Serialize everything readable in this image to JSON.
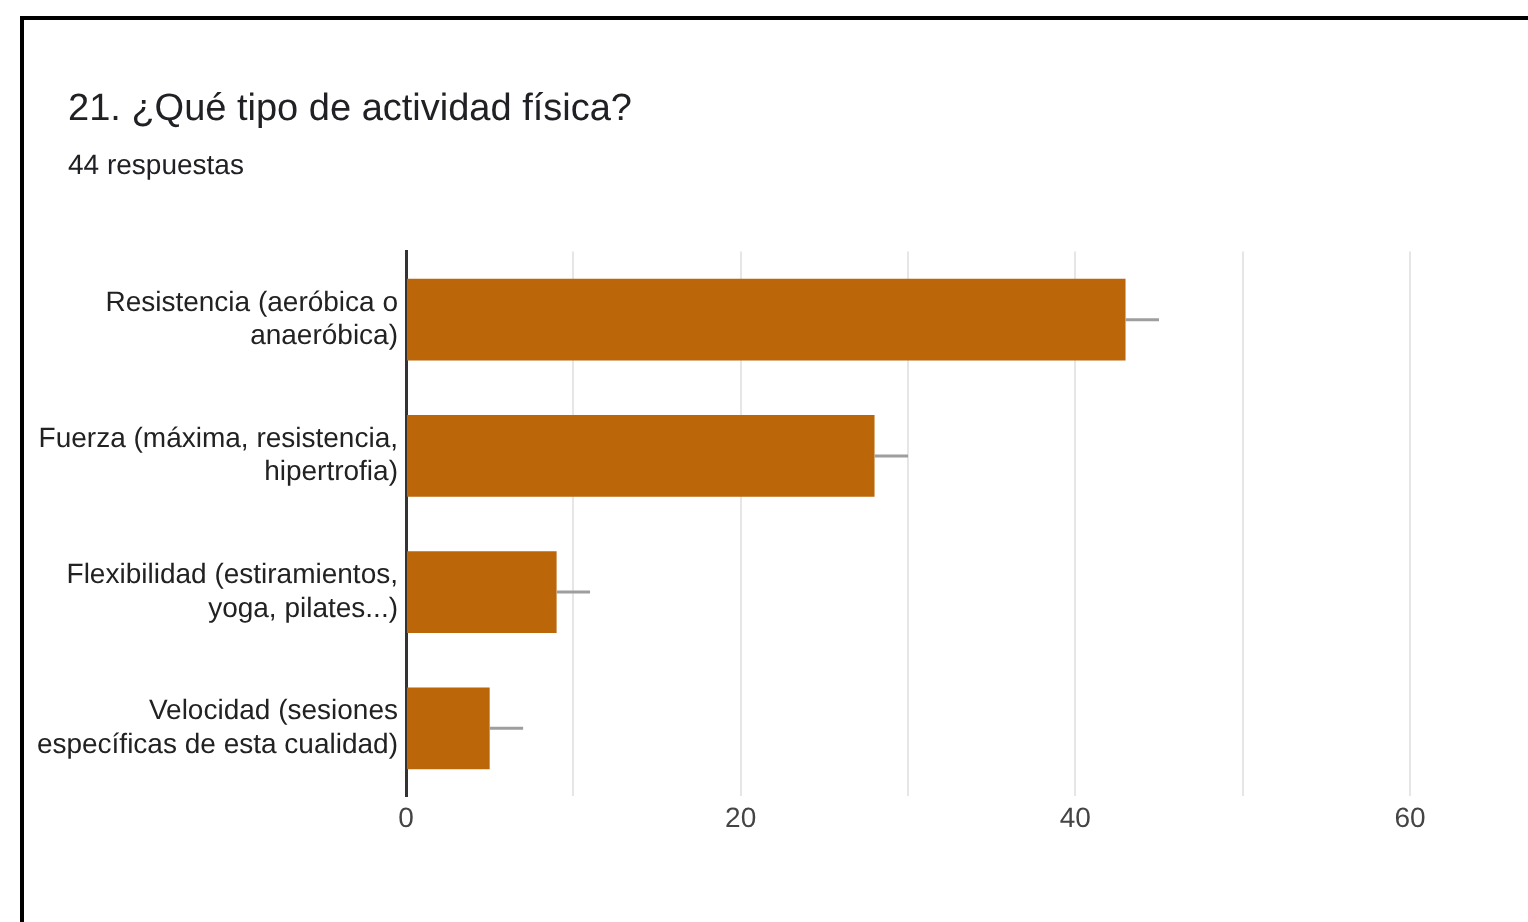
{
  "chart_data": {
    "type": "bar",
    "title": "21. ¿Qué tipo de actividad física?",
    "subtitle": "44 respuestas",
    "orientation": "horizontal",
    "categories": [
      "Resistencia (aeróbica o anaeróbica)",
      "Fuerza (máxima, resistencia, hipertrofia)",
      "Flexibilidad (estiramientos, yoga, pilates...)",
      "Velocidad (sesiones específicas de esta cualidad)"
    ],
    "values": [
      43,
      28,
      9,
      5
    ],
    "color": "#bb6608",
    "errors": [
      [
        43,
        45
      ],
      [
        28,
        30
      ],
      [
        9,
        11
      ],
      [
        5,
        7
      ]
    ],
    "xlim": [
      0,
      60
    ],
    "xticks": [
      0,
      {
        "value": 10,
        "label": null
      },
      20,
      {
        "value": 30,
        "label": null
      },
      40,
      {
        "value": 50,
        "label": null
      },
      60
    ],
    "grid": "x"
  }
}
